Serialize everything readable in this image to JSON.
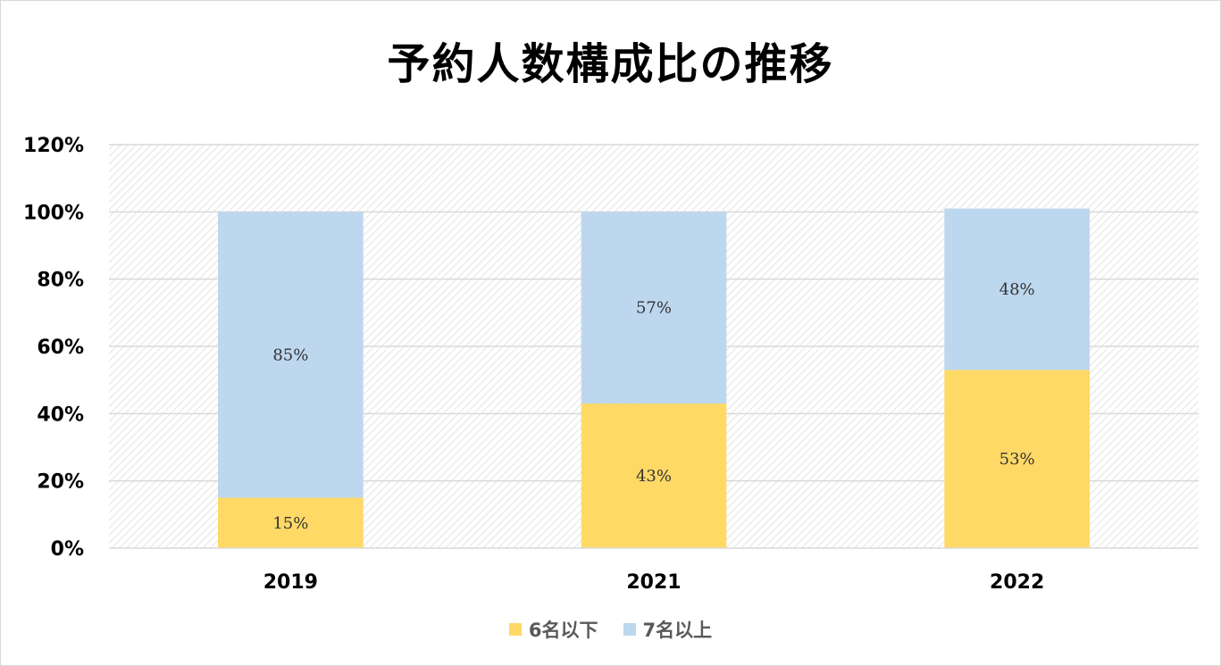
{
  "chart_data": {
    "type": "bar",
    "stacked": true,
    "title": "予約人数構成比の推移",
    "categories": [
      "2019",
      "2021",
      "2022"
    ],
    "series": [
      {
        "name": "6名以下",
        "values": [
          15,
          43,
          53
        ],
        "labels": [
          "15%",
          "43%",
          "53%"
        ],
        "color": "#ffd966"
      },
      {
        "name": "7名以上",
        "values": [
          85,
          57,
          48
        ],
        "labels": [
          "85%",
          "57%",
          "48%"
        ],
        "color": "#bdd7ee"
      }
    ],
    "ylim": [
      0,
      120
    ],
    "yticks": [
      "0%",
      "20%",
      "40%",
      "60%",
      "80%",
      "100%",
      "120%"
    ],
    "grid": true,
    "legend_position": "bottom"
  }
}
